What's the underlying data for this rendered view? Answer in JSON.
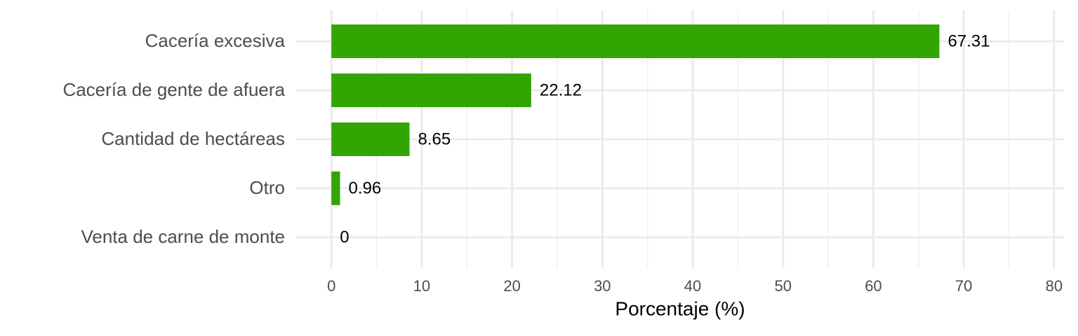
{
  "chart_data": {
    "type": "barh",
    "categories": [
      "Cacería excesiva",
      "Cacería de gente de afuera",
      "Cantidad de hectáreas",
      "Otro",
      "Venta de carne de monte"
    ],
    "values": [
      67.31,
      22.12,
      8.65,
      0.96,
      0
    ],
    "color": "#33a503",
    "xlabel": "Porcentaje (%)",
    "xlim": [
      -3.9,
      81.1
    ],
    "xticks": [
      0,
      10,
      20,
      30,
      40,
      50,
      60,
      70,
      80
    ],
    "x_minor_gridlines": [
      5,
      15,
      25,
      35,
      45,
      55,
      65,
      75
    ],
    "grid": true
  }
}
